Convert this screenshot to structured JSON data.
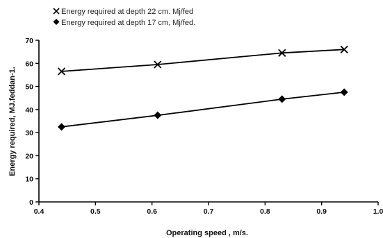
{
  "chart_data": {
    "type": "line",
    "title": "",
    "xlabel": "Operating speed , m/s.",
    "ylabel": "Energy required, MJ.feddan-1.",
    "xlim": [
      0.4,
      1.0
    ],
    "ylim": [
      0,
      70
    ],
    "x_ticks": [
      "0.4",
      "0.5",
      "0.6",
      "0.7",
      "0.8",
      "0.9",
      "1.0"
    ],
    "y_ticks": [
      "0",
      "10",
      "20",
      "30",
      "40",
      "50",
      "60",
      "70"
    ],
    "grid": false,
    "legend_position": "top-left",
    "series": [
      {
        "name": "Energy required at depth 22 cm. Mj/fed",
        "marker": "x-icon",
        "color": "#000000",
        "x": [
          0.44,
          0.61,
          0.83,
          0.94
        ],
        "y": [
          56.5,
          59.5,
          64.5,
          66.0
        ]
      },
      {
        "name": "Energy required at depth 17 cm, Mj/fed.",
        "marker": "diamond-icon",
        "color": "#000000",
        "x": [
          0.44,
          0.61,
          0.83,
          0.94
        ],
        "y": [
          32.5,
          37.5,
          44.5,
          47.5
        ]
      }
    ]
  }
}
